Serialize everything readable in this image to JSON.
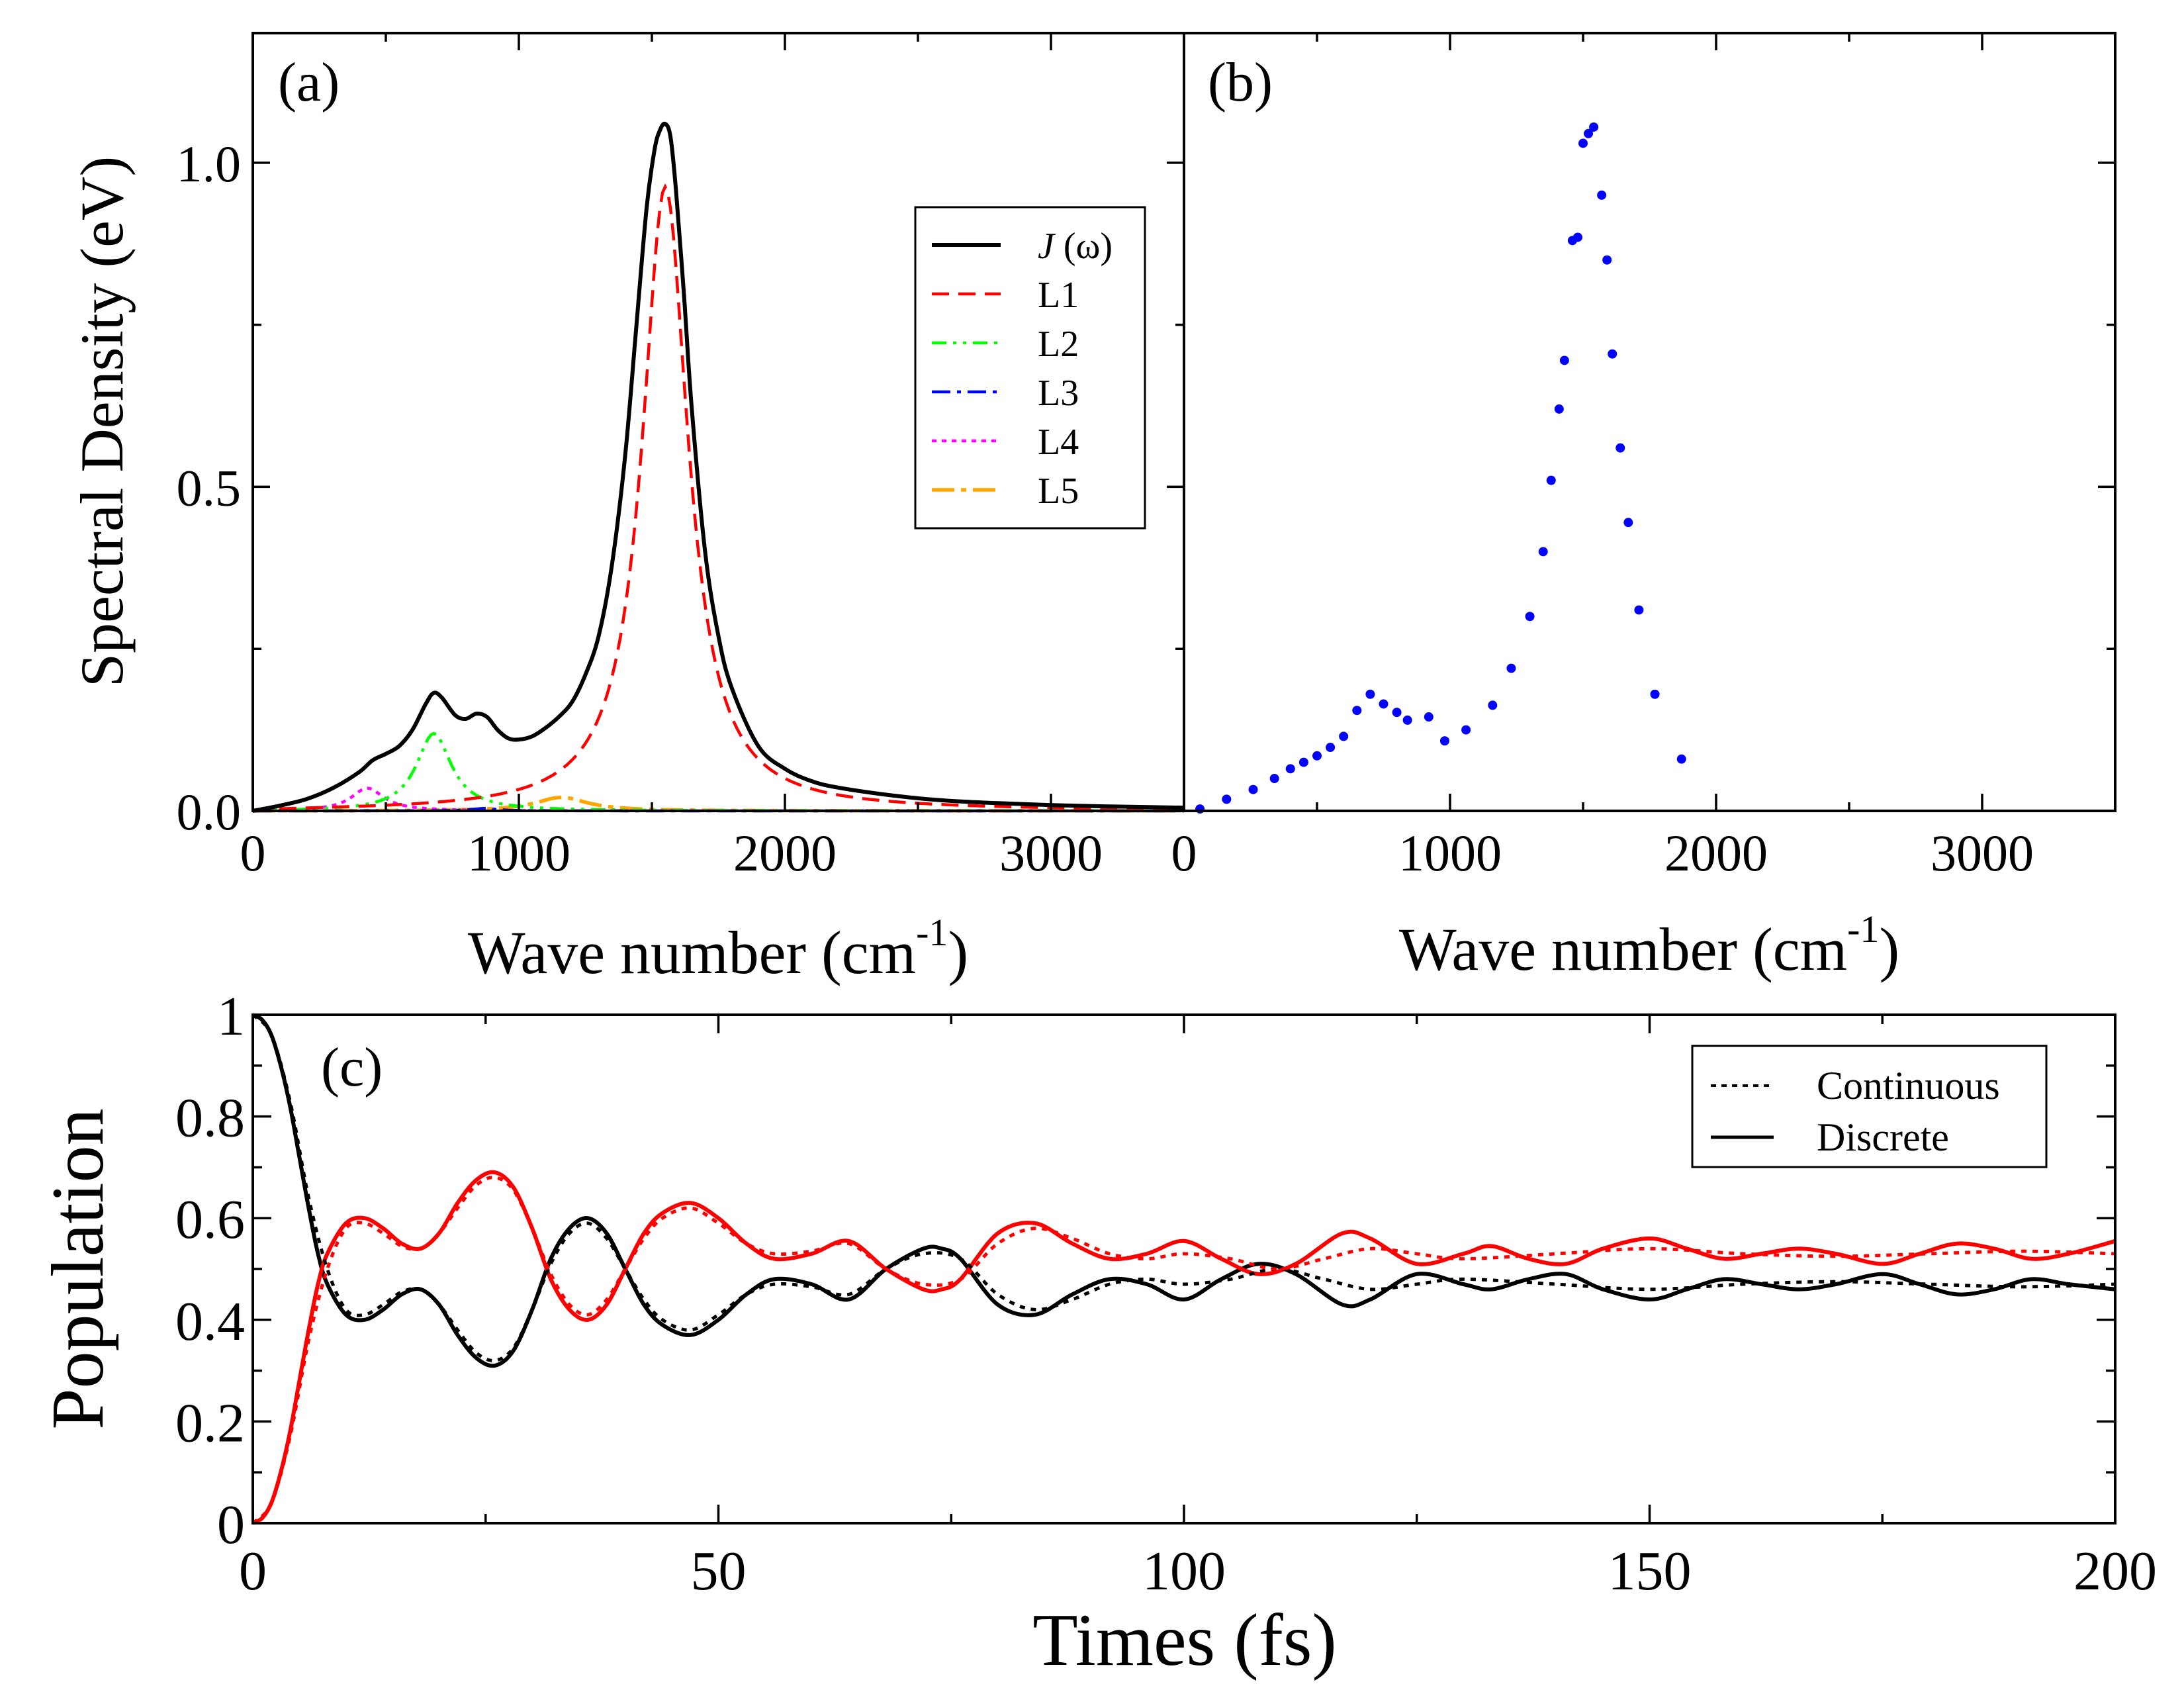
{
  "colors": {
    "J": "#000000",
    "L1": "#ff0000",
    "L2": "#00ff00",
    "L3": "#0000ff",
    "L4": "#ff00ff",
    "L5": "#ffa500",
    "discrete_points": "#0000ff",
    "donor": "#000000",
    "acceptor": "#ff0000"
  },
  "chart_data": [
    {
      "id": "a",
      "type": "line",
      "panel_label": "(a)",
      "xlabel": "Wave number (cm",
      "xlabel_sup": "-1",
      "xlabel_close": ")",
      "ylabel": "Spectral Density (eV)",
      "xlim": [
        0,
        3500
      ],
      "ylim": [
        0,
        1.2
      ],
      "xticks": [
        0,
        1000,
        2000,
        3000
      ],
      "xtick_labels": [
        "0",
        "1000",
        "2000",
        "3000"
      ],
      "xminor": [
        500,
        1500,
        2500,
        3500
      ],
      "yticks": [
        0,
        0.5,
        1.0
      ],
      "ytick_labels": [
        "0.0",
        "0.5",
        "1.0"
      ],
      "yminor": [
        0.25,
        0.75
      ],
      "legend_position": "right",
      "legend": [
        {
          "key": "J",
          "label": "J",
          "label_suffix": " (ω)",
          "style": "solid"
        },
        {
          "key": "L1",
          "label": "L1",
          "style": "dash"
        },
        {
          "key": "L2",
          "label": "L2",
          "style": "dashdotdot"
        },
        {
          "key": "L3",
          "label": "L3",
          "style": "dashdot"
        },
        {
          "key": "L4",
          "label": "L4",
          "style": "dot"
        },
        {
          "key": "L5",
          "label": "L5",
          "style": "longdashdot"
        }
      ],
      "lorentzians": [
        {
          "name": "L1",
          "center": 1550,
          "height": 1.0,
          "hwhm": 105
        },
        {
          "name": "L2",
          "center": 680,
          "height": 0.13,
          "hwhm": 80
        },
        {
          "name": "L3",
          "center": 870,
          "height": 0.004,
          "hwhm": 60
        },
        {
          "name": "L4",
          "center": 430,
          "height": 0.04,
          "hwhm": 75
        },
        {
          "name": "L5",
          "center": 1160,
          "height": 0.022,
          "hwhm": 120
        }
      ],
      "J_points": {
        "x": [
          0,
          100,
          200,
          300,
          400,
          450,
          500,
          550,
          600,
          650,
          680,
          710,
          760,
          800,
          840,
          880,
          920,
          960,
          1000,
          1050,
          1100,
          1150,
          1200,
          1250,
          1300,
          1350,
          1400,
          1440,
          1480,
          1510,
          1530,
          1550,
          1570,
          1590,
          1620,
          1650,
          1700,
          1750,
          1800,
          1900,
          2000,
          2100,
          2200,
          2400,
          2600,
          2800,
          3000,
          3200,
          3500
        ],
        "y": [
          0.0,
          0.008,
          0.018,
          0.035,
          0.06,
          0.078,
          0.088,
          0.1,
          0.125,
          0.165,
          0.182,
          0.175,
          0.148,
          0.142,
          0.15,
          0.145,
          0.125,
          0.112,
          0.11,
          0.115,
          0.128,
          0.145,
          0.168,
          0.21,
          0.27,
          0.38,
          0.55,
          0.74,
          0.93,
          1.02,
          1.05,
          1.06,
          1.04,
          0.96,
          0.8,
          0.62,
          0.4,
          0.27,
          0.19,
          0.1,
          0.065,
          0.046,
          0.036,
          0.024,
          0.016,
          0.012,
          0.009,
          0.007,
          0.005
        ]
      }
    },
    {
      "id": "b",
      "type": "scatter",
      "panel_label": "(b)",
      "xlabel": "Wave number (cm",
      "xlabel_sup": "-1",
      "xlabel_close": ")",
      "xlim": [
        0,
        3500
      ],
      "ylim": [
        0,
        1.2
      ],
      "xticks": [
        0,
        1000,
        2000,
        3000
      ],
      "xtick_labels": [
        "0",
        "1000",
        "2000",
        "3000"
      ],
      "xminor": [
        500,
        1500,
        2500,
        3500
      ],
      "yticks": [
        0,
        0.5,
        1.0
      ],
      "yminor": [
        0.25,
        0.75
      ],
      "x": [
        60,
        160,
        260,
        340,
        400,
        450,
        500,
        550,
        600,
        650,
        700,
        750,
        800,
        840,
        920,
        980,
        1060,
        1160,
        1230,
        1300,
        1350,
        1380,
        1410,
        1430,
        1460,
        1480,
        1500,
        1520,
        1540,
        1570,
        1590,
        1610,
        1640,
        1670,
        1710,
        1770,
        1870
      ],
      "y": [
        0.003,
        0.018,
        0.033,
        0.05,
        0.065,
        0.075,
        0.085,
        0.098,
        0.115,
        0.155,
        0.18,
        0.165,
        0.152,
        0.14,
        0.145,
        0.108,
        0.125,
        0.163,
        0.22,
        0.3,
        0.4,
        0.51,
        0.62,
        0.695,
        0.88,
        0.885,
        1.03,
        1.045,
        1.055,
        0.95,
        0.85,
        0.705,
        0.56,
        0.445,
        0.31,
        0.18,
        0.08
      ]
    },
    {
      "id": "c",
      "type": "line",
      "panel_label": "(c)",
      "xlabel": "Times (fs)",
      "ylabel": "Population",
      "xlim": [
        0,
        200
      ],
      "ylim": [
        0,
        1
      ],
      "xticks": [
        0,
        50,
        100,
        150,
        200
      ],
      "xtick_labels": [
        "0",
        "50",
        "100",
        "150",
        "200"
      ],
      "xminor": [
        25,
        75,
        125,
        175
      ],
      "yticks": [
        0,
        0.2,
        0.4,
        0.6,
        0.8,
        1
      ],
      "ytick_labels": [
        "0",
        "0.2",
        "0.4",
        "0.6",
        "0.8",
        "1"
      ],
      "yminor": [
        0.1,
        0.3,
        0.5,
        0.7,
        0.9
      ],
      "legend_position": "top-right",
      "legend": [
        {
          "label": "Continuous",
          "style": "dot"
        },
        {
          "label": "Discrete",
          "style": "solid"
        }
      ],
      "series": [
        {
          "name": "Discrete (donor)",
          "color_key": "donor",
          "style": "solid",
          "x": [
            0,
            1,
            2,
            3,
            4,
            5,
            6,
            7,
            8,
            10,
            12,
            14,
            16,
            18,
            20,
            22,
            24,
            26,
            28,
            30,
            32,
            34,
            36,
            38,
            40,
            42,
            44,
            47,
            50,
            53,
            56,
            60,
            64,
            68,
            72,
            74,
            76,
            80,
            84,
            88,
            92,
            96,
            100,
            104,
            108,
            112,
            117,
            120,
            125,
            130,
            133,
            137,
            141,
            145,
            150,
            154,
            158,
            162,
            166,
            170,
            175,
            179,
            183,
            187,
            191,
            195,
            200
          ],
          "y": [
            1.0,
            0.99,
            0.96,
            0.9,
            0.82,
            0.72,
            0.62,
            0.53,
            0.47,
            0.41,
            0.4,
            0.42,
            0.45,
            0.46,
            0.43,
            0.37,
            0.325,
            0.31,
            0.34,
            0.42,
            0.52,
            0.58,
            0.6,
            0.57,
            0.5,
            0.43,
            0.39,
            0.37,
            0.4,
            0.45,
            0.48,
            0.47,
            0.44,
            0.5,
            0.54,
            0.54,
            0.52,
            0.43,
            0.41,
            0.45,
            0.48,
            0.47,
            0.44,
            0.48,
            0.51,
            0.49,
            0.43,
            0.44,
            0.49,
            0.47,
            0.46,
            0.48,
            0.49,
            0.46,
            0.44,
            0.46,
            0.48,
            0.47,
            0.46,
            0.47,
            0.49,
            0.47,
            0.45,
            0.46,
            0.48,
            0.47,
            0.46
          ]
        },
        {
          "name": "Discrete (acceptor)",
          "color_key": "acceptor",
          "style": "solid",
          "x": [
            0,
            1,
            2,
            3,
            4,
            5,
            6,
            7,
            8,
            10,
            12,
            14,
            16,
            18,
            20,
            22,
            24,
            26,
            28,
            30,
            32,
            34,
            36,
            38,
            40,
            42,
            44,
            47,
            50,
            53,
            56,
            60,
            64,
            68,
            72,
            74,
            76,
            80,
            84,
            88,
            92,
            96,
            100,
            104,
            108,
            112,
            117,
            120,
            125,
            130,
            133,
            137,
            141,
            145,
            150,
            154,
            158,
            162,
            166,
            170,
            175,
            179,
            183,
            187,
            191,
            195,
            200
          ],
          "y": [
            0.0,
            0.01,
            0.04,
            0.1,
            0.18,
            0.28,
            0.38,
            0.47,
            0.53,
            0.59,
            0.6,
            0.58,
            0.55,
            0.54,
            0.57,
            0.63,
            0.675,
            0.69,
            0.66,
            0.58,
            0.48,
            0.42,
            0.4,
            0.43,
            0.5,
            0.57,
            0.61,
            0.63,
            0.6,
            0.55,
            0.52,
            0.53,
            0.555,
            0.5,
            0.46,
            0.46,
            0.48,
            0.57,
            0.59,
            0.55,
            0.52,
            0.53,
            0.555,
            0.52,
            0.49,
            0.51,
            0.57,
            0.56,
            0.51,
            0.53,
            0.545,
            0.52,
            0.51,
            0.54,
            0.56,
            0.54,
            0.52,
            0.53,
            0.54,
            0.53,
            0.51,
            0.53,
            0.55,
            0.54,
            0.52,
            0.53,
            0.555
          ]
        },
        {
          "name": "Continuous (donor)",
          "color_key": "donor",
          "style": "dot",
          "x": [
            0,
            2,
            4,
            6,
            8,
            10,
            12,
            14,
            16,
            18,
            20,
            22,
            24,
            26,
            28,
            30,
            32,
            34,
            36,
            38,
            40,
            42,
            44,
            47,
            50,
            53,
            56,
            60,
            64,
            68,
            72,
            76,
            80,
            84,
            88,
            92,
            96,
            100,
            105,
            110,
            115,
            120,
            125,
            130,
            140,
            150,
            160,
            170,
            180,
            190,
            200
          ],
          "y": [
            1.0,
            0.96,
            0.83,
            0.64,
            0.5,
            0.42,
            0.41,
            0.43,
            0.455,
            0.46,
            0.43,
            0.38,
            0.335,
            0.32,
            0.345,
            0.42,
            0.51,
            0.57,
            0.59,
            0.56,
            0.5,
            0.44,
            0.4,
            0.38,
            0.41,
            0.45,
            0.47,
            0.465,
            0.45,
            0.5,
            0.53,
            0.52,
            0.45,
            0.42,
            0.44,
            0.47,
            0.48,
            0.47,
            0.48,
            0.5,
            0.48,
            0.46,
            0.47,
            0.48,
            0.47,
            0.46,
            0.47,
            0.475,
            0.47,
            0.465,
            0.47
          ]
        },
        {
          "name": "Continuous (acceptor)",
          "color_key": "acceptor",
          "style": "dot",
          "x": [
            0,
            2,
            4,
            6,
            8,
            10,
            12,
            14,
            16,
            18,
            20,
            22,
            24,
            26,
            28,
            30,
            32,
            34,
            36,
            38,
            40,
            42,
            44,
            47,
            50,
            53,
            56,
            60,
            64,
            68,
            72,
            76,
            80,
            84,
            88,
            92,
            96,
            100,
            105,
            110,
            115,
            120,
            125,
            130,
            140,
            150,
            160,
            170,
            180,
            190,
            200
          ],
          "y": [
            0.0,
            0.04,
            0.17,
            0.36,
            0.5,
            0.58,
            0.59,
            0.57,
            0.545,
            0.54,
            0.57,
            0.62,
            0.665,
            0.68,
            0.655,
            0.58,
            0.49,
            0.43,
            0.41,
            0.44,
            0.5,
            0.56,
            0.6,
            0.62,
            0.59,
            0.55,
            0.53,
            0.535,
            0.55,
            0.5,
            0.47,
            0.48,
            0.55,
            0.58,
            0.56,
            0.53,
            0.52,
            0.53,
            0.52,
            0.5,
            0.52,
            0.54,
            0.53,
            0.52,
            0.53,
            0.54,
            0.53,
            0.525,
            0.53,
            0.535,
            0.53
          ]
        }
      ]
    }
  ]
}
